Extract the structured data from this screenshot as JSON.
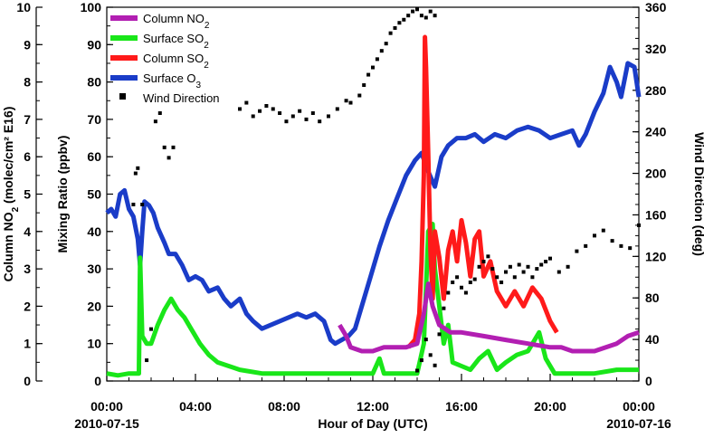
{
  "chart_data": {
    "type": "line",
    "x_unit": "hours since 2010-07-15 00:00 UTC",
    "xlim": [
      0,
      24
    ],
    "xlabel": "Hour of Day (UTC)",
    "x_ticks": [
      {
        "value": 0,
        "label": "00:00",
        "sublabel": "2010-07-15"
      },
      {
        "value": 4,
        "label": "04:00",
        "sublabel": ""
      },
      {
        "value": 8,
        "label": "08:00",
        "sublabel": ""
      },
      {
        "value": 12,
        "label": "12:00",
        "sublabel": ""
      },
      {
        "value": 16,
        "label": "16:00",
        "sublabel": ""
      },
      {
        "value": 20,
        "label": "20:00",
        "sublabel": ""
      },
      {
        "value": 24,
        "label": "00:00",
        "sublabel": "2010-07-16"
      }
    ],
    "y_left_outer": {
      "label_main": "Column NO",
      "label_sub": "2",
      "label_tail": " (molec/cm² E16)",
      "lim": [
        0,
        10
      ],
      "ticks": [
        0,
        1,
        2,
        3,
        4,
        5,
        6,
        7,
        8,
        9,
        10
      ]
    },
    "y_left_inner": {
      "label": "Mixing Ratio (ppbv)",
      "lim": [
        0,
        100
      ],
      "ticks": [
        0,
        10,
        20,
        30,
        40,
        50,
        60,
        70,
        80,
        90,
        100
      ]
    },
    "y_right": {
      "label": "Wind Direction (deg)",
      "lim": [
        0,
        360
      ],
      "ticks": [
        0,
        40,
        80,
        120,
        160,
        200,
        240,
        280,
        320,
        360
      ]
    },
    "legend": [
      {
        "key": "no2",
        "main": "Column NO",
        "sub": "2",
        "color": "#b21fb2",
        "marker": "line"
      },
      {
        "key": "sso2",
        "main": "Surface SO",
        "sub": "2",
        "color": "#19e619",
        "marker": "line"
      },
      {
        "key": "cso2",
        "main": "Column SO",
        "sub": "2",
        "color": "#ff1a1a",
        "marker": "line"
      },
      {
        "key": "o3",
        "main": "Surface O",
        "sub": "3",
        "color": "#1a3cc8",
        "marker": "line"
      },
      {
        "key": "wd",
        "main": "Wind Direction",
        "sub": "",
        "color": "#000000",
        "marker": "square"
      }
    ],
    "series": [
      {
        "name": "Surface O3",
        "axis": "mixing_ratio",
        "color": "#1a3cc8",
        "points": [
          [
            0,
            45
          ],
          [
            0.2,
            46
          ],
          [
            0.4,
            44
          ],
          [
            0.6,
            50
          ],
          [
            0.8,
            51
          ],
          [
            1.0,
            46
          ],
          [
            1.2,
            44
          ],
          [
            1.4,
            38
          ],
          [
            1.5,
            31
          ],
          [
            1.6,
            40
          ],
          [
            1.7,
            48
          ],
          [
            1.9,
            47
          ],
          [
            2.1,
            45
          ],
          [
            2.3,
            41
          ],
          [
            2.6,
            37
          ],
          [
            2.8,
            34
          ],
          [
            3.1,
            34
          ],
          [
            3.4,
            31
          ],
          [
            3.7,
            27
          ],
          [
            4.0,
            28
          ],
          [
            4.3,
            27
          ],
          [
            4.6,
            24
          ],
          [
            5.0,
            25
          ],
          [
            5.3,
            22
          ],
          [
            5.6,
            20
          ],
          [
            6.0,
            22
          ],
          [
            6.3,
            18
          ],
          [
            6.6,
            16
          ],
          [
            7.0,
            14
          ],
          [
            7.4,
            15
          ],
          [
            7.8,
            16
          ],
          [
            8.2,
            17
          ],
          [
            8.6,
            18
          ],
          [
            9.0,
            17
          ],
          [
            9.4,
            18
          ],
          [
            9.8,
            16
          ],
          [
            10.1,
            11
          ],
          [
            10.3,
            10
          ],
          [
            10.6,
            11
          ],
          [
            10.9,
            12
          ],
          [
            11.2,
            14
          ],
          [
            11.5,
            20
          ],
          [
            11.9,
            28
          ],
          [
            12.3,
            36
          ],
          [
            12.7,
            43
          ],
          [
            13.1,
            49
          ],
          [
            13.5,
            55
          ],
          [
            13.9,
            59
          ],
          [
            14.2,
            61
          ],
          [
            14.5,
            56
          ],
          [
            14.8,
            52
          ],
          [
            15.1,
            60
          ],
          [
            15.4,
            63
          ],
          [
            15.8,
            65
          ],
          [
            16.2,
            65
          ],
          [
            16.6,
            66
          ],
          [
            17.0,
            64
          ],
          [
            17.5,
            66
          ],
          [
            18.0,
            65
          ],
          [
            18.5,
            67
          ],
          [
            19.0,
            68
          ],
          [
            19.5,
            67
          ],
          [
            20.0,
            65
          ],
          [
            20.5,
            66
          ],
          [
            21.0,
            67
          ],
          [
            21.3,
            63
          ],
          [
            21.6,
            66
          ],
          [
            22.0,
            72
          ],
          [
            22.4,
            77
          ],
          [
            22.7,
            84
          ],
          [
            23.0,
            80
          ],
          [
            23.2,
            76
          ],
          [
            23.5,
            85
          ],
          [
            23.8,
            84
          ],
          [
            24.0,
            76
          ]
        ]
      },
      {
        "name": "Surface SO2",
        "axis": "mixing_ratio",
        "color": "#19e619",
        "points": [
          [
            0,
            2
          ],
          [
            0.5,
            1.5
          ],
          [
            1.0,
            2
          ],
          [
            1.45,
            2
          ],
          [
            1.5,
            33
          ],
          [
            1.6,
            12
          ],
          [
            1.8,
            10
          ],
          [
            2.0,
            10
          ],
          [
            2.3,
            15
          ],
          [
            2.6,
            19
          ],
          [
            2.9,
            22
          ],
          [
            3.2,
            19
          ],
          [
            3.5,
            17
          ],
          [
            3.8,
            14
          ],
          [
            4.2,
            10
          ],
          [
            4.6,
            7
          ],
          [
            5.0,
            5
          ],
          [
            5.5,
            4
          ],
          [
            6.0,
            3
          ],
          [
            7.0,
            2
          ],
          [
            8.0,
            2
          ],
          [
            9.0,
            2
          ],
          [
            10.0,
            2
          ],
          [
            11.0,
            2
          ],
          [
            12.0,
            2
          ],
          [
            12.3,
            6
          ],
          [
            12.5,
            2
          ],
          [
            13.0,
            2
          ],
          [
            13.5,
            2
          ],
          [
            14.0,
            2
          ],
          [
            14.3,
            10
          ],
          [
            14.5,
            40
          ],
          [
            14.7,
            42
          ],
          [
            14.8,
            30
          ],
          [
            15.0,
            20
          ],
          [
            15.2,
            10
          ],
          [
            15.4,
            15
          ],
          [
            15.6,
            5
          ],
          [
            16.0,
            4
          ],
          [
            16.4,
            3
          ],
          [
            16.8,
            6
          ],
          [
            17.2,
            8
          ],
          [
            17.6,
            3
          ],
          [
            18.0,
            5
          ],
          [
            18.5,
            7
          ],
          [
            19.0,
            8
          ],
          [
            19.5,
            13
          ],
          [
            19.8,
            6
          ],
          [
            20.2,
            2
          ],
          [
            21.0,
            2
          ],
          [
            22.0,
            2
          ],
          [
            23.0,
            3
          ],
          [
            24.0,
            3
          ]
        ]
      },
      {
        "name": "Column SO2",
        "axis": "column_no2",
        "color": "#ff1a1a",
        "points": [
          [
            13.6,
            0.9
          ],
          [
            13.9,
            1.1
          ],
          [
            14.1,
            1.8
          ],
          [
            14.2,
            3.2
          ],
          [
            14.3,
            5.5
          ],
          [
            14.35,
            9.2
          ],
          [
            14.4,
            8.4
          ],
          [
            14.5,
            6.0
          ],
          [
            14.6,
            3.5
          ],
          [
            14.7,
            2.2
          ],
          [
            14.8,
            4.0
          ],
          [
            15.0,
            3.3
          ],
          [
            15.2,
            2.2
          ],
          [
            15.4,
            3.5
          ],
          [
            15.6,
            4.0
          ],
          [
            15.8,
            3.2
          ],
          [
            16.0,
            4.3
          ],
          [
            16.2,
            3.7
          ],
          [
            16.4,
            2.8
          ],
          [
            16.6,
            3.8
          ],
          [
            16.8,
            4.0
          ],
          [
            17.0,
            2.8
          ],
          [
            17.3,
            3.2
          ],
          [
            17.6,
            2.4
          ],
          [
            18.0,
            2.0
          ],
          [
            18.4,
            2.4
          ],
          [
            18.8,
            2.0
          ],
          [
            19.2,
            2.5
          ],
          [
            19.6,
            2.2
          ],
          [
            20.0,
            1.6
          ],
          [
            20.3,
            1.3
          ]
        ]
      },
      {
        "name": "Column NO2",
        "axis": "column_no2",
        "color": "#b21fb2",
        "points": [
          [
            10.5,
            1.5
          ],
          [
            10.8,
            1.2
          ],
          [
            11.0,
            0.9
          ],
          [
            11.5,
            0.8
          ],
          [
            12.0,
            0.8
          ],
          [
            12.5,
            0.9
          ],
          [
            13.0,
            0.9
          ],
          [
            13.5,
            0.9
          ],
          [
            14.0,
            1.0
          ],
          [
            14.3,
            1.8
          ],
          [
            14.5,
            2.6
          ],
          [
            14.7,
            2.0
          ],
          [
            15.0,
            1.5
          ],
          [
            15.5,
            1.3
          ],
          [
            16.0,
            1.3
          ],
          [
            17.0,
            1.2
          ],
          [
            18.0,
            1.1
          ],
          [
            19.0,
            1.0
          ],
          [
            20.0,
            0.9
          ],
          [
            20.5,
            0.9
          ],
          [
            21.0,
            0.8
          ],
          [
            22.0,
            0.8
          ],
          [
            23.0,
            1.0
          ],
          [
            23.5,
            1.2
          ],
          [
            24.0,
            1.3
          ]
        ]
      }
    ],
    "scatter": {
      "name": "Wind Direction",
      "axis": "wind_direction",
      "color": "#000000",
      "points": [
        [
          1.2,
          170
        ],
        [
          1.3,
          200
        ],
        [
          1.4,
          205
        ],
        [
          1.6,
          170
        ],
        [
          1.8,
          20
        ],
        [
          2.0,
          50
        ],
        [
          2.2,
          250
        ],
        [
          2.4,
          258
        ],
        [
          2.6,
          225
        ],
        [
          2.8,
          215
        ],
        [
          3.0,
          225
        ],
        [
          6.0,
          262
        ],
        [
          6.3,
          268
        ],
        [
          6.6,
          255
        ],
        [
          6.9,
          260
        ],
        [
          7.2,
          265
        ],
        [
          7.5,
          262
        ],
        [
          7.8,
          258
        ],
        [
          8.1,
          250
        ],
        [
          8.4,
          255
        ],
        [
          8.7,
          260
        ],
        [
          9.0,
          252
        ],
        [
          9.3,
          258
        ],
        [
          9.6,
          250
        ],
        [
          10.0,
          255
        ],
        [
          10.4,
          262
        ],
        [
          10.8,
          270
        ],
        [
          11.0,
          268
        ],
        [
          11.4,
          275
        ],
        [
          11.6,
          285
        ],
        [
          11.8,
          295
        ],
        [
          12.0,
          302
        ],
        [
          12.2,
          310
        ],
        [
          12.4,
          318
        ],
        [
          12.6,
          325
        ],
        [
          12.8,
          335
        ],
        [
          13.0,
          340
        ],
        [
          13.2,
          345
        ],
        [
          13.4,
          348
        ],
        [
          13.6,
          352
        ],
        [
          13.8,
          356
        ],
        [
          14.0,
          358
        ],
        [
          14.2,
          352
        ],
        [
          14.4,
          350
        ],
        [
          14.6,
          356
        ],
        [
          14.8,
          352
        ],
        [
          14.0,
          10
        ],
        [
          14.2,
          20
        ],
        [
          14.4,
          40
        ],
        [
          14.6,
          25
        ],
        [
          14.8,
          15
        ],
        [
          15.0,
          45
        ],
        [
          15.2,
          70
        ],
        [
          15.4,
          85
        ],
        [
          15.6,
          95
        ],
        [
          15.8,
          100
        ],
        [
          16.0,
          90
        ],
        [
          16.2,
          85
        ],
        [
          16.4,
          95
        ],
        [
          16.6,
          98
        ],
        [
          16.8,
          110
        ],
        [
          17.0,
          115
        ],
        [
          17.2,
          120
        ],
        [
          17.4,
          108
        ],
        [
          17.6,
          100
        ],
        [
          17.8,
          95
        ],
        [
          18.0,
          105
        ],
        [
          18.2,
          110
        ],
        [
          18.4,
          100
        ],
        [
          18.6,
          112
        ],
        [
          18.8,
          105
        ],
        [
          19.0,
          110
        ],
        [
          19.2,
          100
        ],
        [
          19.4,
          108
        ],
        [
          19.6,
          112
        ],
        [
          19.8,
          115
        ],
        [
          20.0,
          118
        ],
        [
          20.4,
          105
        ],
        [
          20.8,
          110
        ],
        [
          21.2,
          125
        ],
        [
          21.6,
          130
        ],
        [
          22.0,
          140
        ],
        [
          22.4,
          145
        ],
        [
          22.8,
          135
        ],
        [
          23.2,
          130
        ],
        [
          23.6,
          128
        ],
        [
          24.0,
          150
        ]
      ]
    }
  }
}
